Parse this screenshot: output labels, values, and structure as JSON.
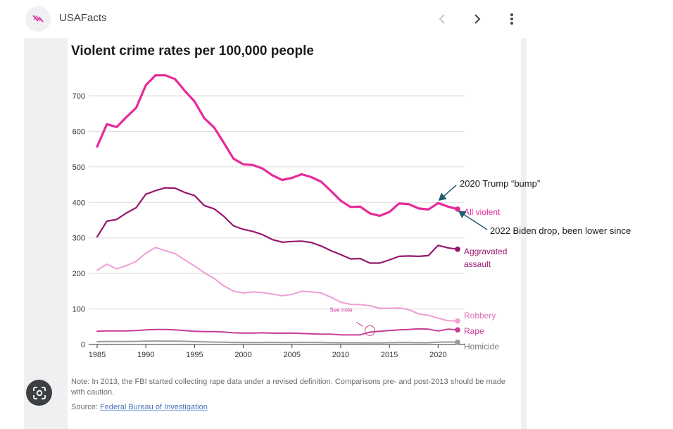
{
  "app": {
    "title": "USAFacts",
    "icons": {
      "app": "usafacts-flag-icon",
      "back": "chevron-left-icon",
      "forward": "chevron-right-icon",
      "menu": "more-vert-icon",
      "lens": "google-lens-icon"
    }
  },
  "annotations": {
    "trump": "2020 Trump “bump”",
    "biden": "2022 Biden drop, been lower since"
  },
  "footer": {
    "note": "Note: In 2013, the FBI started collecting rape data under a revised definition. Comparisons pre- and post-2013 should be made with caution.",
    "source_prefix": "Source: ",
    "source_link": "Federal Bureau of Investigation"
  },
  "colors": {
    "all_violent": "#e8299a",
    "aggravated_assault": "#97166e",
    "robbery": "#ef9ed6",
    "rape": "#c83c96",
    "homicide": "#9a9a9a",
    "arrow": "#1f5f6e"
  },
  "chart_data": {
    "type": "line",
    "title": "Violent crime rates per 100,000 people",
    "xlabel": "",
    "ylabel": "",
    "xlim": [
      1985,
      2022
    ],
    "ylim": [
      0,
      700
    ],
    "yticks": [
      0,
      100,
      200,
      300,
      400,
      500,
      600,
      700
    ],
    "xticks": [
      1985,
      1990,
      1995,
      2000,
      2005,
      2010,
      2015,
      2020
    ],
    "grid": true,
    "callout": "See note",
    "x": [
      1985,
      1986,
      1987,
      1988,
      1989,
      1990,
      1991,
      1992,
      1993,
      1994,
      1995,
      1996,
      1997,
      1998,
      1999,
      2000,
      2001,
      2002,
      2003,
      2004,
      2005,
      2006,
      2007,
      2008,
      2009,
      2010,
      2011,
      2012,
      2013,
      2014,
      2015,
      2016,
      2017,
      2018,
      2019,
      2020,
      2021,
      2022
    ],
    "series": [
      {
        "name": "All violent",
        "key": "all_violent",
        "label": [
          "All violent"
        ],
        "values": [
          557,
          620,
          612,
          640,
          666,
          730,
          758,
          758,
          747,
          714,
          684,
          637,
          611,
          568,
          523,
          507,
          505,
          495,
          476,
          463,
          469,
          479,
          471,
          458,
          432,
          405,
          387,
          388,
          369,
          362,
          373,
          397,
          395,
          383,
          380,
          398,
          388,
          381
        ]
      },
      {
        "name": "Aggravated assault",
        "key": "aggravated_assault",
        "label": [
          "Aggravated",
          "assault"
        ],
        "values": [
          303,
          347,
          352,
          370,
          385,
          423,
          433,
          441,
          440,
          428,
          419,
          391,
          382,
          361,
          334,
          324,
          318,
          309,
          295,
          288,
          290,
          291,
          287,
          277,
          264,
          253,
          241,
          242,
          229,
          229,
          238,
          248,
          249,
          248,
          250,
          279,
          272,
          268
        ]
      },
      {
        "name": "Robbery",
        "key": "robbery",
        "label": [
          "Robbery"
        ],
        "values": [
          209,
          226,
          213,
          222,
          234,
          257,
          273,
          264,
          256,
          238,
          221,
          202,
          186,
          165,
          150,
          145,
          148,
          146,
          142,
          137,
          141,
          150,
          148,
          145,
          133,
          119,
          113,
          112,
          109,
          102,
          102,
          103,
          98,
          86,
          82,
          74,
          67,
          66
        ]
      },
      {
        "name": "Rape",
        "key": "rape",
        "label": [
          "Rape"
        ],
        "values": [
          37,
          38,
          38,
          38,
          39,
          41,
          42,
          42,
          41,
          39,
          37,
          36,
          36,
          35,
          33,
          32,
          32,
          33,
          32,
          32,
          32,
          31,
          30,
          29,
          29,
          27,
          27,
          27,
          35,
          37,
          39,
          41,
          42,
          44,
          43,
          38,
          43,
          41
        ]
      },
      {
        "name": "Homicide",
        "key": "homicide",
        "label": [
          "Homicide"
        ],
        "values": [
          8,
          8.6,
          8.3,
          8.4,
          8.7,
          9.4,
          9.8,
          9.3,
          9.5,
          9,
          8.2,
          7.4,
          6.8,
          6.3,
          5.7,
          5.5,
          5.6,
          5.6,
          5.7,
          5.5,
          5.6,
          5.8,
          5.7,
          5.4,
          5,
          4.8,
          4.7,
          4.7,
          4.5,
          4.4,
          4.9,
          5.4,
          5.3,
          5,
          5,
          6.5,
          6.9,
          6.3
        ]
      }
    ]
  }
}
